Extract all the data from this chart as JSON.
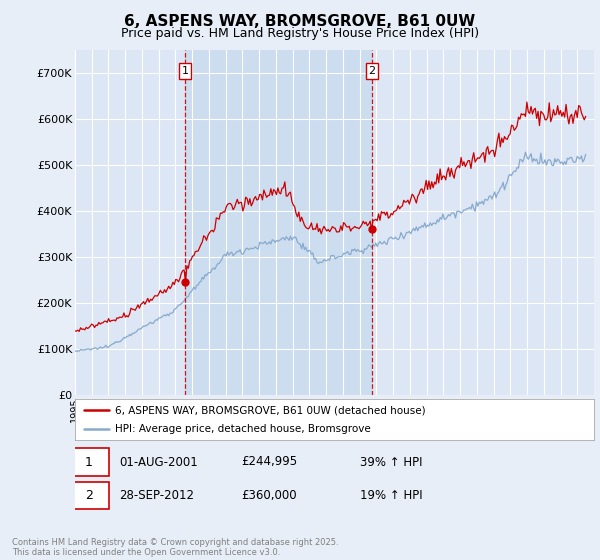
{
  "title": "6, ASPENS WAY, BROMSGROVE, B61 0UW",
  "subtitle": "Price paid vs. HM Land Registry's House Price Index (HPI)",
  "background_color": "#e8eef8",
  "plot_bg_color": "#dce6f5",
  "shaded_region_color": "#ccddf0",
  "red_line_color": "#cc0000",
  "blue_line_color": "#88aacc",
  "vline_color": "#cc0000",
  "ylim": [
    0,
    750000
  ],
  "yticks": [
    0,
    100000,
    200000,
    300000,
    400000,
    500000,
    600000,
    700000
  ],
  "ytick_labels": [
    "£0",
    "£100K",
    "£200K",
    "£300K",
    "£400K",
    "£500K",
    "£600K",
    "£700K"
  ],
  "xlim_start": 1995.0,
  "xlim_end": 2026.0,
  "purchase1_x": 2001.58,
  "purchase1_y": 244995,
  "purchase2_x": 2012.74,
  "purchase2_y": 360000,
  "legend_line1": "6, ASPENS WAY, BROMSGROVE, B61 0UW (detached house)",
  "legend_line2": "HPI: Average price, detached house, Bromsgrove",
  "annotation1_label": "1",
  "annotation1_date": "01-AUG-2001",
  "annotation1_price": "£244,995",
  "annotation1_hpi": "39% ↑ HPI",
  "annotation2_label": "2",
  "annotation2_date": "28-SEP-2012",
  "annotation2_price": "£360,000",
  "annotation2_hpi": "19% ↑ HPI",
  "footer": "Contains HM Land Registry data © Crown copyright and database right 2025.\nThis data is licensed under the Open Government Licence v3.0.",
  "title_fontsize": 11,
  "subtitle_fontsize": 9
}
